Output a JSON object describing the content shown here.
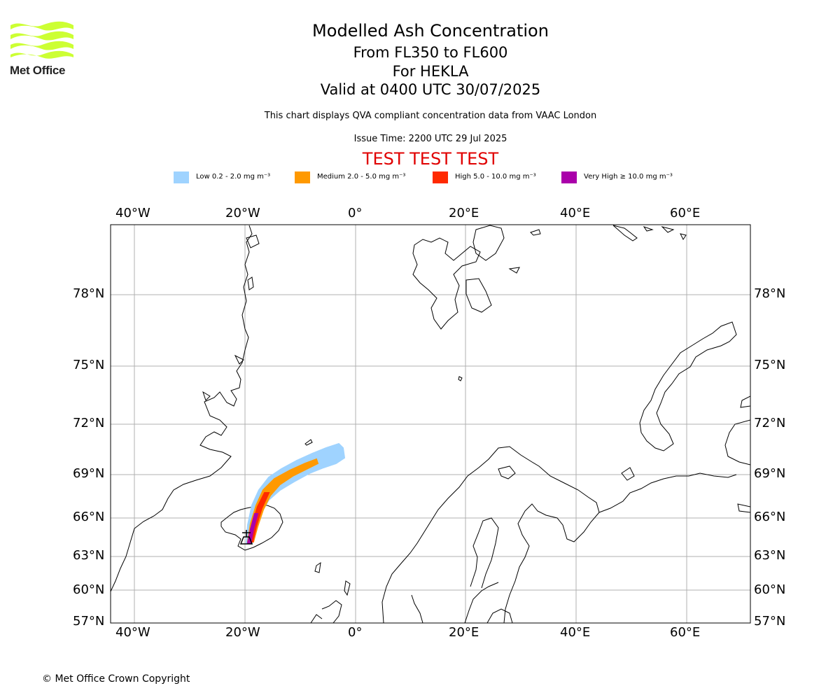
{
  "logo": {
    "text": "Met Office",
    "color": "#ccff33"
  },
  "title": {
    "line1": "Modelled Ash Concentration",
    "line2": "From FL350 to FL600",
    "line3": "For HEKLA",
    "line4": "Valid at 0400 UTC 30/07/2025"
  },
  "subtitle": "This chart displays QVA compliant concentration data from VAAC London",
  "issue_time": "Issue Time: 2200 UTC 29 Jul 2025",
  "test_banner": "TEST TEST TEST",
  "test_color": "#e00000",
  "legend": [
    {
      "label": "Low 0.2 - 2.0 mg m⁻³",
      "color": "#9fd3ff"
    },
    {
      "label": "Medium 2.0 - 5.0 mg m⁻³",
      "color": "#ff9900"
    },
    {
      "label": "High 5.0 - 10.0 mg m⁻³",
      "color": "#ff2a00"
    },
    {
      "label": "Very High ≥ 10.0 mg m⁻³",
      "color": "#aa00aa"
    }
  ],
  "map": {
    "lon_ticks": [
      "40°W",
      "20°W",
      "0°",
      "20°E",
      "40°E",
      "60°E"
    ],
    "lat_ticks": [
      "78°N",
      "75°N",
      "72°N",
      "69°N",
      "66°N",
      "63°N",
      "60°N",
      "57°N"
    ],
    "volcano_marker": "volcano-symbol",
    "grid_color": "#b0b0b0"
  },
  "copyright": "© Met Office Crown Copyright"
}
